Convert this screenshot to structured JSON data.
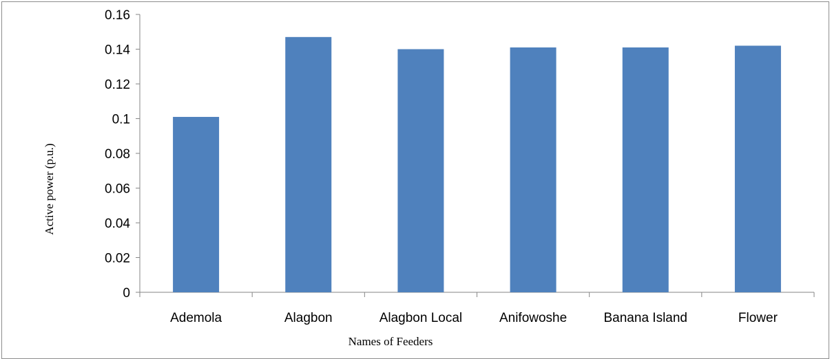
{
  "chart_data": {
    "type": "bar",
    "title": "",
    "xlabel": "Names of Feeders",
    "ylabel": "Active power (p.u.)",
    "categories": [
      "Ademola",
      "Alagbon",
      "Alagbon Local",
      "Anifowoshe",
      "Banana Island",
      "Flower"
    ],
    "values": [
      0.101,
      0.147,
      0.14,
      0.141,
      0.141,
      0.142
    ],
    "ylim": [
      0,
      0.16
    ],
    "yticks": [
      "0",
      "0.02",
      "0.04",
      "0.06",
      "0.08",
      "0.1",
      "0.12",
      "0.14",
      "0.16"
    ],
    "grid": false,
    "legend": "none",
    "bar_color": "#4f81bd"
  }
}
